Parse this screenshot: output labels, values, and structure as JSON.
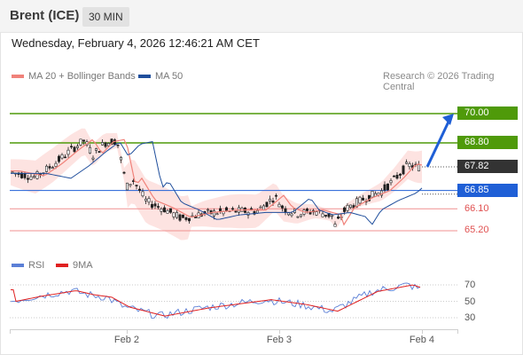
{
  "header": {
    "instrument": "Brent (ICE)",
    "interval": "30 MIN"
  },
  "datetime": "Wednesday, February 4, 2026 12:46:21 AM CET",
  "legend": {
    "ma20": {
      "label": "MA 20 + Bollinger Bands",
      "color": "#f0827a"
    },
    "ma50": {
      "label": "MA 50",
      "color": "#1f4e9c"
    },
    "source": "Research © 2026 Trading Central"
  },
  "rsi_legend": {
    "rsi": {
      "label": "RSI",
      "color": "#5b7fd6"
    },
    "ma9": {
      "label": "9MA",
      "color": "#e02020"
    }
  },
  "chart_data": {
    "type": "candlestick",
    "x_labels": [
      "Feb 2",
      "Feb 3",
      "Feb 4"
    ],
    "price_levels": [
      {
        "value": 70.0,
        "label": "70.00",
        "kind": "resistance",
        "color": "#4f9a0a"
      },
      {
        "value": 68.8,
        "label": "68.80",
        "kind": "resistance",
        "color": "#4f9a0a"
      },
      {
        "value": 67.82,
        "label": "67.82",
        "kind": "last",
        "color": "#333333"
      },
      {
        "value": 66.85,
        "label": "66.85",
        "kind": "pivot",
        "color": "#1f5fd6"
      },
      {
        "value": 66.1,
        "label": "66.10",
        "kind": "support",
        "color": "#e05050"
      },
      {
        "value": 65.2,
        "label": "65.20",
        "kind": "support",
        "color": "#e05050"
      }
    ],
    "rsi_axis": [
      70,
      50,
      30
    ],
    "forecast_arrow": {
      "from": 67.82,
      "to": 70.0,
      "color": "#1f5fd6"
    }
  }
}
